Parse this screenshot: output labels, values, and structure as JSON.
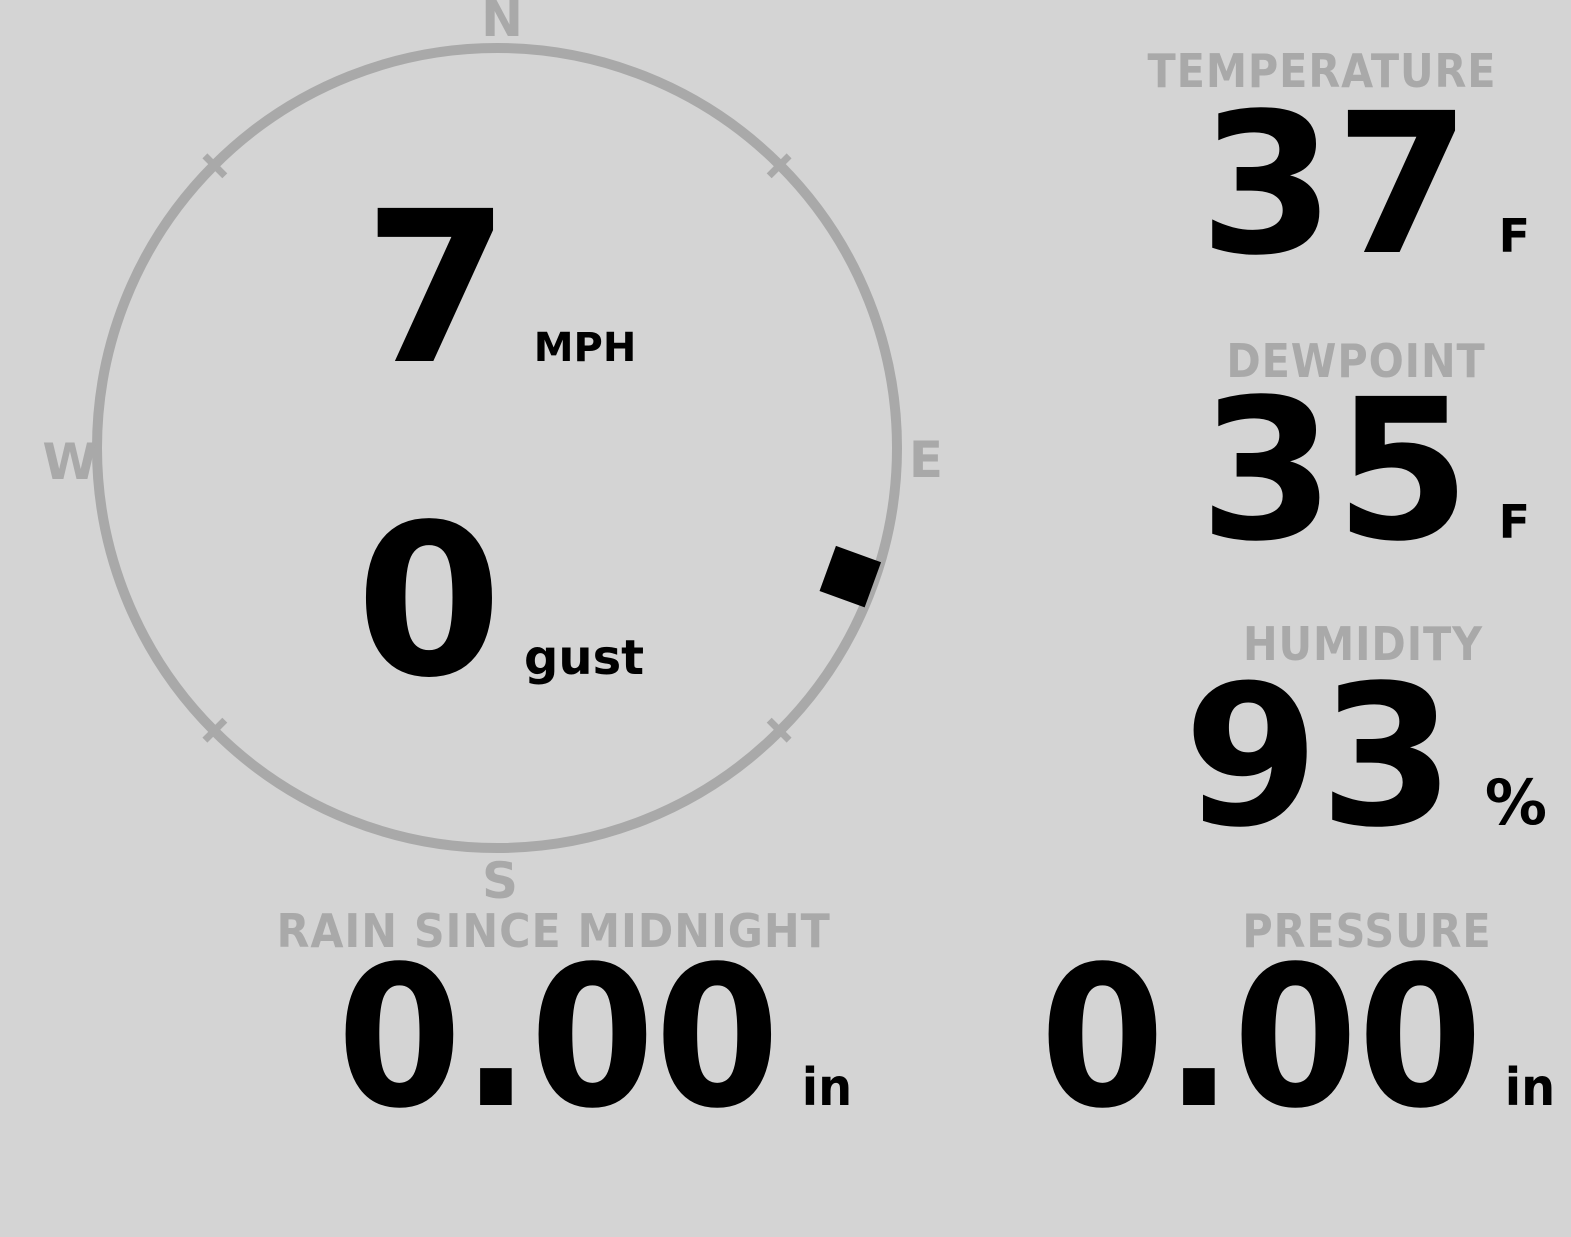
{
  "colors": {
    "background": "#d4d4d4",
    "muted_gray": "#a9a9a9",
    "ink": "#000000"
  },
  "compass": {
    "cardinals": {
      "north": "N",
      "east": "E",
      "south": "S",
      "west": "W"
    },
    "wind_speed": {
      "value": "7",
      "unit": "MPH"
    },
    "wind_gust": {
      "value": "0",
      "unit": "gust"
    },
    "direction_degrees": 110
  },
  "metrics": {
    "temperature": {
      "label": "TEMPERATURE",
      "value": "37",
      "unit": "F"
    },
    "dewpoint": {
      "label": "DEWPOINT",
      "value": "35",
      "unit": "F"
    },
    "humidity": {
      "label": "HUMIDITY",
      "value": "93",
      "unit": "%"
    },
    "rain_since_midnight": {
      "label": "RAIN SINCE MIDNIGHT",
      "value": "0.00",
      "unit": "in"
    },
    "pressure": {
      "label": "PRESSURE",
      "value": "0.00",
      "unit": "in"
    }
  }
}
